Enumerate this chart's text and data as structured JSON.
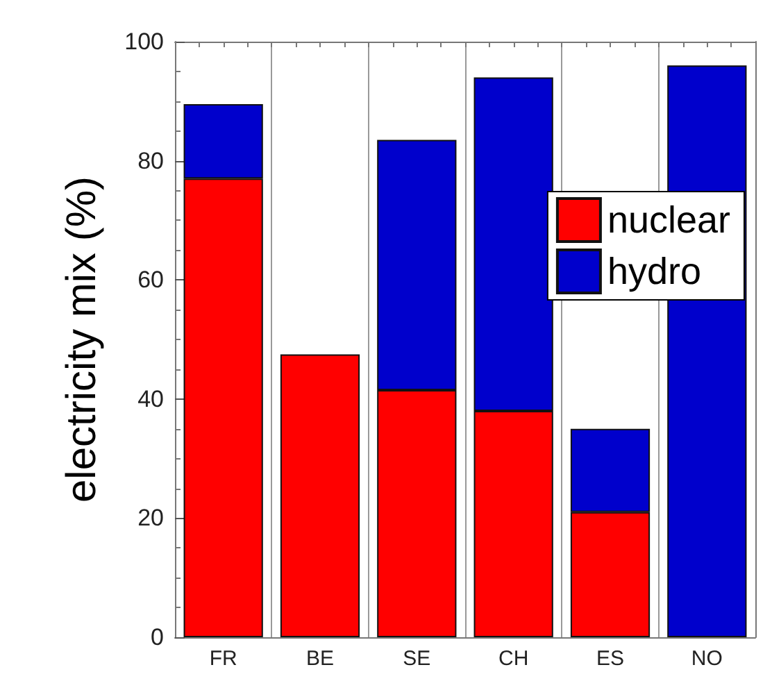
{
  "chart_data": {
    "type": "bar",
    "ylabel": "electricity mix (%)",
    "categories": [
      "FR",
      "BE",
      "SE",
      "CH",
      "ES",
      "NO"
    ],
    "stacked": true,
    "series": [
      {
        "name": "nuclear",
        "color": "#ff0000",
        "values": [
          77,
          47.5,
          41.5,
          38,
          21,
          null
        ]
      },
      {
        "name": "hydro",
        "color": "#0000cc",
        "values": [
          12.5,
          null,
          42,
          56,
          14,
          96
        ]
      }
    ],
    "ylim": [
      0,
      100
    ],
    "yticks": [
      0,
      20,
      40,
      60,
      80,
      100
    ],
    "grid": "x",
    "legend": "right"
  }
}
